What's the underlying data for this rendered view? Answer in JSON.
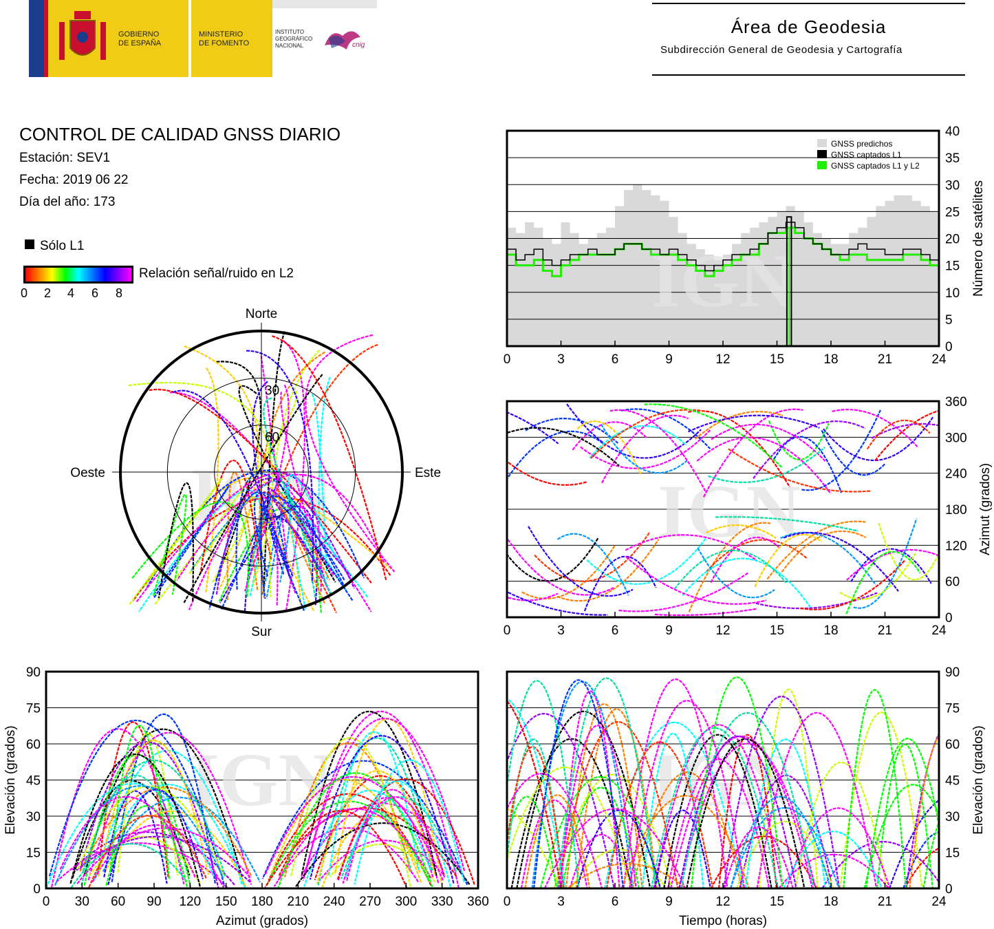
{
  "header": {
    "gov_line1": "GOBIERNO",
    "gov_line2": "DE ESPAÑA",
    "min_line1": "MINISTERIO",
    "min_line2": "DE FOMENTO",
    "ign_line1": "INSTITUTO",
    "ign_line2": "GEOGRÁFICO",
    "ign_line3": "NACIONAL",
    "cnig": "cnig",
    "area_title": "Área de Geodesia",
    "area_subtitle": "Subdirección General de Geodesia y Cartografía",
    "colors": {
      "gov_yellow": "#f1cc17",
      "flag_blue": "#1b3c8c",
      "flag_red": "#c8102e"
    }
  },
  "info": {
    "title": "CONTROL DE CALIDAD GNSS DIARIO",
    "station": "Estación: SEV1",
    "date": "Fecha: 2019 06 22",
    "doy": "Día del año: 173"
  },
  "legend": {
    "solo_l1": "Sólo L1",
    "snr_label": "Relación señal/ruido en L2",
    "snr_ticks": [
      "0",
      "2",
      "4",
      "6",
      "8"
    ]
  },
  "watermark": "IGN",
  "chart_data": [
    {
      "type": "area",
      "title": "",
      "xlabel": "",
      "ylabel": "Número de satélites",
      "xlim": [
        0,
        24
      ],
      "ylim": [
        0,
        40
      ],
      "xticks": [
        "0",
        "3",
        "6",
        "9",
        "12",
        "15",
        "18",
        "21",
        "24"
      ],
      "yticks": [
        "0",
        "5",
        "10",
        "15",
        "20",
        "25",
        "30",
        "35",
        "40"
      ],
      "grid": true,
      "legend_position": "top-right",
      "legend": [
        "GNSS predichos",
        "GNSS captados L1",
        "GNSS captados L1 y L2"
      ],
      "colors": {
        "predicted": "#d9d9d9",
        "l1": "#000000",
        "l1l2": "#22ee00"
      },
      "x": [
        0,
        0.5,
        1,
        1.5,
        2,
        2.5,
        3,
        3.5,
        4,
        4.5,
        5,
        5.5,
        6,
        6.5,
        7,
        7.5,
        8,
        8.5,
        9,
        9.5,
        10,
        10.5,
        11,
        11.5,
        12,
        12.5,
        13,
        13.5,
        14,
        14.5,
        15,
        15.5,
        16,
        16.5,
        17,
        17.5,
        18,
        18.5,
        19,
        19.5,
        20,
        20.5,
        21,
        21.5,
        22,
        22.5,
        23,
        23.5,
        24
      ],
      "series": [
        {
          "name": "GNSS predichos",
          "values": [
            22,
            21,
            23,
            22,
            20,
            19,
            23,
            21,
            19,
            20,
            21,
            22,
            26,
            29,
            30,
            29,
            28,
            27,
            24,
            21,
            19,
            18,
            17,
            16,
            17,
            19,
            21,
            22,
            23,
            24,
            25,
            26,
            25,
            23,
            21,
            20,
            19,
            19,
            21,
            22,
            24,
            26,
            27,
            28,
            28,
            27,
            26,
            25,
            24
          ]
        },
        {
          "name": "GNSS captados L1",
          "values": [
            18,
            16,
            17,
            18,
            16,
            15,
            16,
            17,
            17,
            18,
            17,
            17,
            18,
            19,
            19,
            18,
            18,
            17,
            18,
            17,
            16,
            15,
            14,
            15,
            16,
            17,
            17,
            18,
            19,
            21,
            22,
            23,
            22,
            20,
            19,
            18,
            17,
            17,
            18,
            19,
            18,
            18,
            17,
            17,
            18,
            18,
            17,
            16,
            16
          ]
        },
        {
          "name": "GNSS captados L1 y L2",
          "values": [
            17,
            15,
            15,
            16,
            14,
            13,
            15,
            16,
            17,
            17,
            17,
            17,
            18,
            19,
            19,
            18,
            17,
            17,
            17,
            16,
            15,
            14,
            13,
            14,
            15,
            16,
            17,
            17,
            19,
            21,
            21,
            22,
            21,
            20,
            19,
            18,
            17,
            16,
            17,
            17,
            16,
            16,
            16,
            16,
            17,
            17,
            16,
            15,
            15
          ]
        }
      ],
      "annotations": [
        "sharp drop to 0 satellites around 15.5–15.8 h"
      ]
    },
    {
      "type": "polar",
      "title": "",
      "labels": {
        "n": "Norte",
        "s": "Sur",
        "e": "Este",
        "w": "Oeste"
      },
      "rings": [
        "30",
        "60"
      ],
      "colorscale": "Relación señal/ruido en L2 (0–8)"
    },
    {
      "type": "scatter",
      "title": "",
      "xlabel": "",
      "ylabel": "Azimut (grados)",
      "xlim": [
        0,
        24
      ],
      "ylim": [
        0,
        360
      ],
      "xticks": [
        "0",
        "3",
        "6",
        "9",
        "12",
        "15",
        "18",
        "21",
        "24"
      ],
      "yticks": [
        "0",
        "60",
        "120",
        "180",
        "240",
        "300",
        "360"
      ],
      "grid": true
    },
    {
      "type": "scatter",
      "title": "",
      "xlabel": "Azimut (grados)",
      "ylabel": "Elevación (grados)",
      "xlim": [
        0,
        360
      ],
      "ylim": [
        0,
        90
      ],
      "xticks": [
        "0",
        "30",
        "60",
        "90",
        "120",
        "150",
        "180",
        "210",
        "240",
        "270",
        "300",
        "330",
        "360"
      ],
      "yticks": [
        "0",
        "15",
        "30",
        "45",
        "60",
        "75",
        "90"
      ],
      "grid": true
    },
    {
      "type": "scatter",
      "title": "",
      "xlabel": "Tiempo (horas)",
      "ylabel": "Elevación (grados)",
      "xlim": [
        0,
        24
      ],
      "ylim": [
        0,
        90
      ],
      "xticks": [
        "0",
        "3",
        "6",
        "9",
        "12",
        "15",
        "18",
        "21",
        "24"
      ],
      "yticks": [
        "0",
        "15",
        "30",
        "45",
        "60",
        "75",
        "90"
      ],
      "grid": true
    }
  ]
}
